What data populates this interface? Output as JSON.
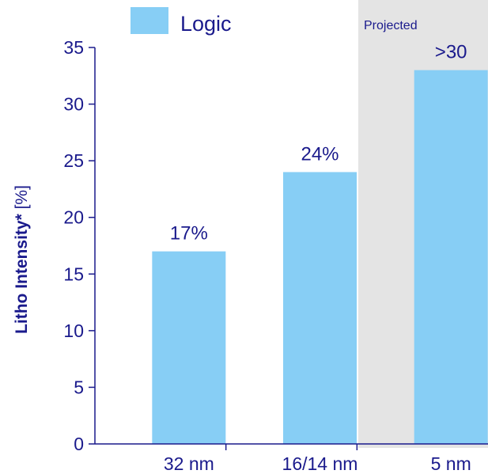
{
  "chart_data": {
    "type": "bar",
    "categories": [
      "32 nm",
      "16/14 nm",
      "5 nm"
    ],
    "values": [
      17,
      24,
      33
    ],
    "data_labels": [
      "17%",
      "24%",
      ">30"
    ],
    "ylabel_bold": "Litho Intensity*",
    "ylabel_unit": "[%]",
    "ylim": [
      0,
      35
    ],
    "yticks": [
      0,
      5,
      10,
      15,
      20,
      25,
      30,
      35
    ],
    "grid": false,
    "legend": {
      "position": "top",
      "entries": [
        {
          "name": "Logic",
          "color": "#87CEF5"
        }
      ]
    },
    "annotation": {
      "text": "Projected",
      "category": "5 nm",
      "shade_color": "#E4E4E4"
    },
    "colors": {
      "bar": "#87CEF5",
      "axis": "#1A1A8C",
      "text": "#1A1A8C"
    }
  }
}
